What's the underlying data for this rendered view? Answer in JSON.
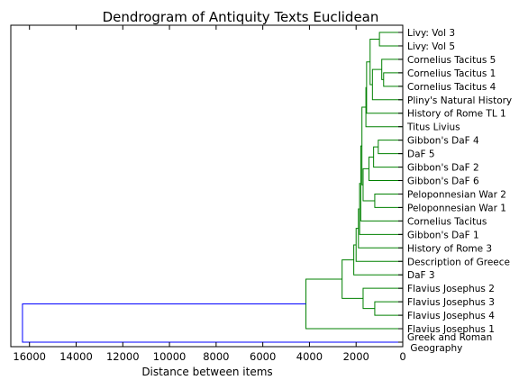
{
  "chart_data": {
    "type": "dendrogram",
    "orientation": "left",
    "title": "Dendrogram of Antiquity Texts Euclidean",
    "xlabel": "Distance between items",
    "xlim": [
      16800,
      0
    ],
    "xticks": [
      16000,
      14000,
      12000,
      10000,
      8000,
      6000,
      4000,
      2000,
      0
    ],
    "leaves": [
      "Livy: Vol 3",
      "Livy: Vol 5",
      "Cornelius Tacitus 5",
      "Cornelius Tacitus 1",
      "Cornelius Tacitus 4",
      "Pliny's Natural History",
      "History of Rome TL 1",
      "Titus Livius",
      "Gibbon's DaF 4",
      "DaF 5",
      "Gibbon's DaF 2",
      "Gibbon's DaF 6",
      "Peloponnesian War 2",
      "Peloponnesian War 1",
      "Cornelius Tacitus",
      "Gibbon's DaF 1",
      "History of Rome 3",
      "Description of Greece",
      "DaF 3",
      "Flavius Josephus 2",
      "Flavius Josephus 3",
      "Flavius Josephus 4",
      "Flavius Josephus 1",
      "Greek and Roman Geography"
    ],
    "merges": [
      {
        "a": 0,
        "b": 1,
        "height": 1000
      },
      {
        "a": 3,
        "b": 4,
        "height": 820
      },
      {
        "a": 2,
        "b": 25,
        "height": 900
      },
      {
        "a": 26,
        "b": 5,
        "height": 1300
      },
      {
        "a": 24,
        "b": 27,
        "height": 1400
      },
      {
        "a": 28,
        "b": 6,
        "height": 1550
      },
      {
        "a": 29,
        "b": 7,
        "height": 1580
      },
      {
        "a": 8,
        "b": 9,
        "height": 1050
      },
      {
        "a": 31,
        "b": 10,
        "height": 1250
      },
      {
        "a": 32,
        "b": 11,
        "height": 1450
      },
      {
        "a": 12,
        "b": 13,
        "height": 1200
      },
      {
        "a": 33,
        "b": 34,
        "height": 1700
      },
      {
        "a": 30,
        "b": 35,
        "height": 1750
      },
      {
        "a": 36,
        "b": 14,
        "height": 1800
      },
      {
        "a": 37,
        "b": 15,
        "height": 1850
      },
      {
        "a": 38,
        "b": 16,
        "height": 1900
      },
      {
        "a": 39,
        "b": 17,
        "height": 2000
      },
      {
        "a": 40,
        "b": 18,
        "height": 2100
      },
      {
        "a": 20,
        "b": 21,
        "height": 1200
      },
      {
        "a": 19,
        "b": 42,
        "height": 1700
      },
      {
        "a": 41,
        "b": 43,
        "height": 2600
      },
      {
        "a": 44,
        "b": 22,
        "height": 4150
      },
      {
        "a": 45,
        "b": 23,
        "height": 16300
      }
    ],
    "color_threshold": 5000,
    "colors": {
      "below": "#008000",
      "above": "#0000ff",
      "axis": "#000000"
    },
    "grid": false
  }
}
